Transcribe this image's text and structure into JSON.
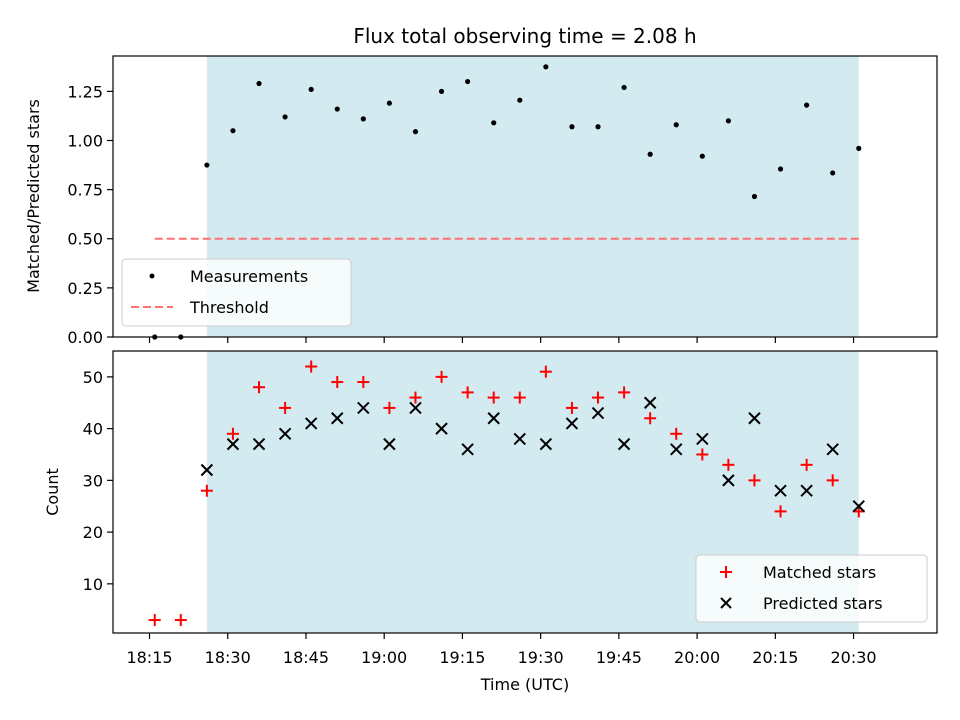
{
  "chart_data": [
    {
      "type": "scatter",
      "title": "Flux total observing time = 2.08 h",
      "xlabel": "",
      "ylabel": "Matched/Predicted stars",
      "ylim": [
        0.0,
        1.43
      ],
      "yticks": [
        0.0,
        0.25,
        0.5,
        0.75,
        1.0,
        1.25
      ],
      "ytick_labels": [
        "0.00",
        "0.25",
        "0.50",
        "0.75",
        "1.00",
        "1.25"
      ],
      "xlim_minutes": [
        1088,
        1246
      ],
      "shaded_region_minutes": [
        1106,
        1231
      ],
      "shade_color": "#d3eaf0",
      "series": [
        {
          "name": "Measurements",
          "color": "#000000",
          "marker": "dot",
          "x_minutes": [
            1096,
            1101,
            1106,
            1111,
            1116,
            1121,
            1126,
            1131,
            1136,
            1141,
            1146,
            1151,
            1156,
            1161,
            1166,
            1171,
            1176,
            1181,
            1186,
            1191,
            1196,
            1201,
            1206,
            1211,
            1216,
            1221,
            1226,
            1231
          ],
          "values": [
            0.0,
            0.0,
            0.875,
            1.05,
            1.29,
            1.12,
            1.26,
            1.16,
            1.11,
            1.19,
            1.045,
            1.25,
            1.3,
            1.09,
            1.205,
            1.375,
            1.07,
            1.07,
            1.27,
            0.93,
            1.08,
            0.92,
            1.1,
            0.715,
            0.855,
            1.18,
            0.835,
            0.96
          ]
        },
        {
          "name": "Threshold",
          "color": "#ff7070",
          "marker": "dashed-line",
          "x_minutes": [
            1096,
            1231
          ],
          "values": [
            0.5,
            0.5
          ]
        }
      ],
      "legend": {
        "placement": "lower-left",
        "entries": [
          "Measurements",
          "Threshold"
        ]
      }
    },
    {
      "type": "scatter",
      "title": "",
      "xlabel": "Time (UTC)",
      "ylabel": "Count",
      "ylim": [
        0.5,
        55.0
      ],
      "yticks": [
        10,
        20,
        30,
        40,
        50
      ],
      "ytick_labels": [
        "10",
        "20",
        "30",
        "40",
        "50"
      ],
      "xlim_minutes": [
        1088,
        1246
      ],
      "xticks_minutes": [
        1095,
        1110,
        1125,
        1140,
        1155,
        1170,
        1185,
        1200,
        1215,
        1230
      ],
      "xtick_labels": [
        "18:15",
        "18:30",
        "18:45",
        "19:00",
        "19:15",
        "19:30",
        "19:45",
        "20:00",
        "20:15",
        "20:30"
      ],
      "shaded_region_minutes": [
        1106,
        1231
      ],
      "shade_color": "#d3eaf0",
      "series": [
        {
          "name": "Matched stars",
          "color": "#ff0000",
          "marker": "plus",
          "x_minutes": [
            1096,
            1101,
            1106,
            1111,
            1116,
            1121,
            1126,
            1131,
            1136,
            1141,
            1146,
            1151,
            1156,
            1161,
            1166,
            1171,
            1176,
            1181,
            1186,
            1191,
            1196,
            1201,
            1206,
            1211,
            1216,
            1221,
            1226,
            1231
          ],
          "values": [
            3,
            3,
            28,
            39,
            48,
            44,
            52,
            49,
            49,
            44,
            46,
            50,
            47,
            46,
            46,
            51,
            44,
            46,
            47,
            42,
            39,
            35,
            33,
            30,
            24,
            33,
            30,
            24
          ]
        },
        {
          "name": "Predicted stars",
          "color": "#000000",
          "marker": "x",
          "x_minutes": [
            1106,
            1111,
            1116,
            1121,
            1126,
            1131,
            1136,
            1141,
            1146,
            1151,
            1156,
            1161,
            1166,
            1171,
            1176,
            1181,
            1186,
            1191,
            1196,
            1201,
            1206,
            1211,
            1216,
            1221,
            1226,
            1231
          ],
          "values": [
            32,
            37,
            37,
            39,
            41,
            42,
            44,
            37,
            44,
            40,
            36,
            42,
            38,
            37,
            41,
            43,
            37,
            45,
            36,
            38,
            30,
            42,
            28,
            28,
            36,
            25
          ]
        }
      ],
      "legend": {
        "placement": "lower-right",
        "entries": [
          "Matched stars",
          "Predicted stars"
        ]
      }
    }
  ]
}
